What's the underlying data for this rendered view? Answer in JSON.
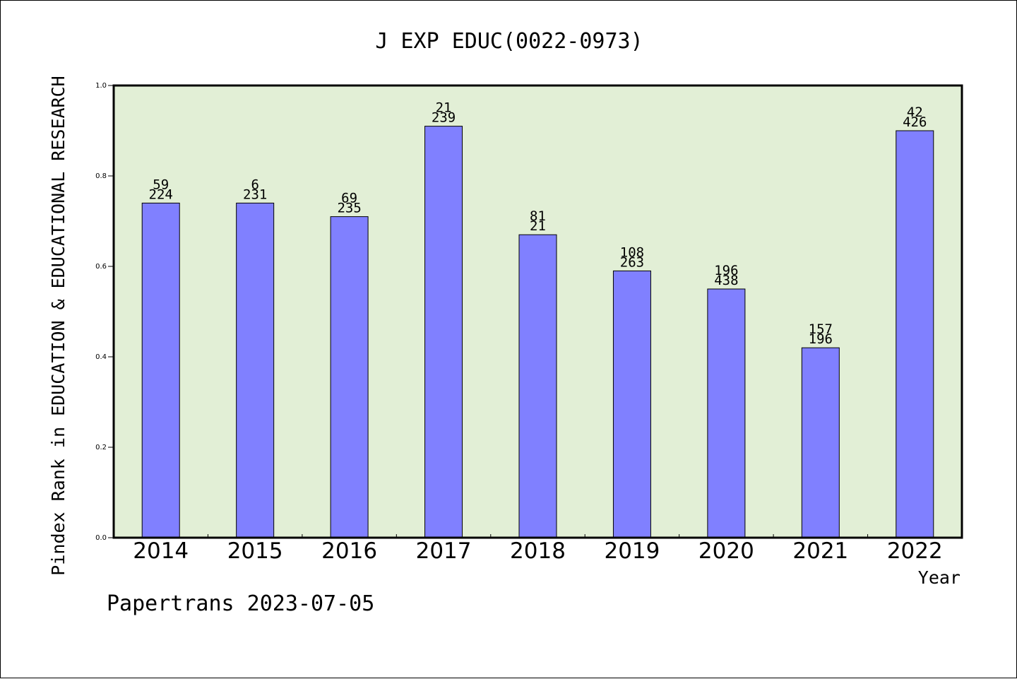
{
  "chart_data": {
    "type": "bar",
    "title": "J EXP EDUC(0022-0973)",
    "xlabel": "Year",
    "ylabel": "Pindex Rank in EDUCATION & EDUCATIONAL RESEARCH",
    "footer": "Papertrans 2023-07-05",
    "categories": [
      "2014",
      "2015",
      "2016",
      "2017",
      "2018",
      "2019",
      "2020",
      "2021",
      "2022"
    ],
    "values": [
      0.74,
      0.74,
      0.71,
      0.91,
      0.67,
      0.59,
      0.55,
      0.42,
      0.9
    ],
    "label_top": [
      "59",
      "6",
      "69",
      "21",
      "81",
      "108",
      "196",
      "157",
      "42"
    ],
    "label_bottom": [
      "224",
      "231",
      "235",
      "239",
      "21",
      "263",
      "438",
      "196",
      "426"
    ],
    "ylim": [
      0,
      1.0
    ],
    "yticks": [
      "0.0",
      "0.2",
      "0.4",
      "0.6",
      "0.8",
      "1.0"
    ],
    "grid": false,
    "colors": {
      "plot_bg": "#e2efd6",
      "bar": "#8080ff",
      "bar_edge": "#000000"
    }
  }
}
